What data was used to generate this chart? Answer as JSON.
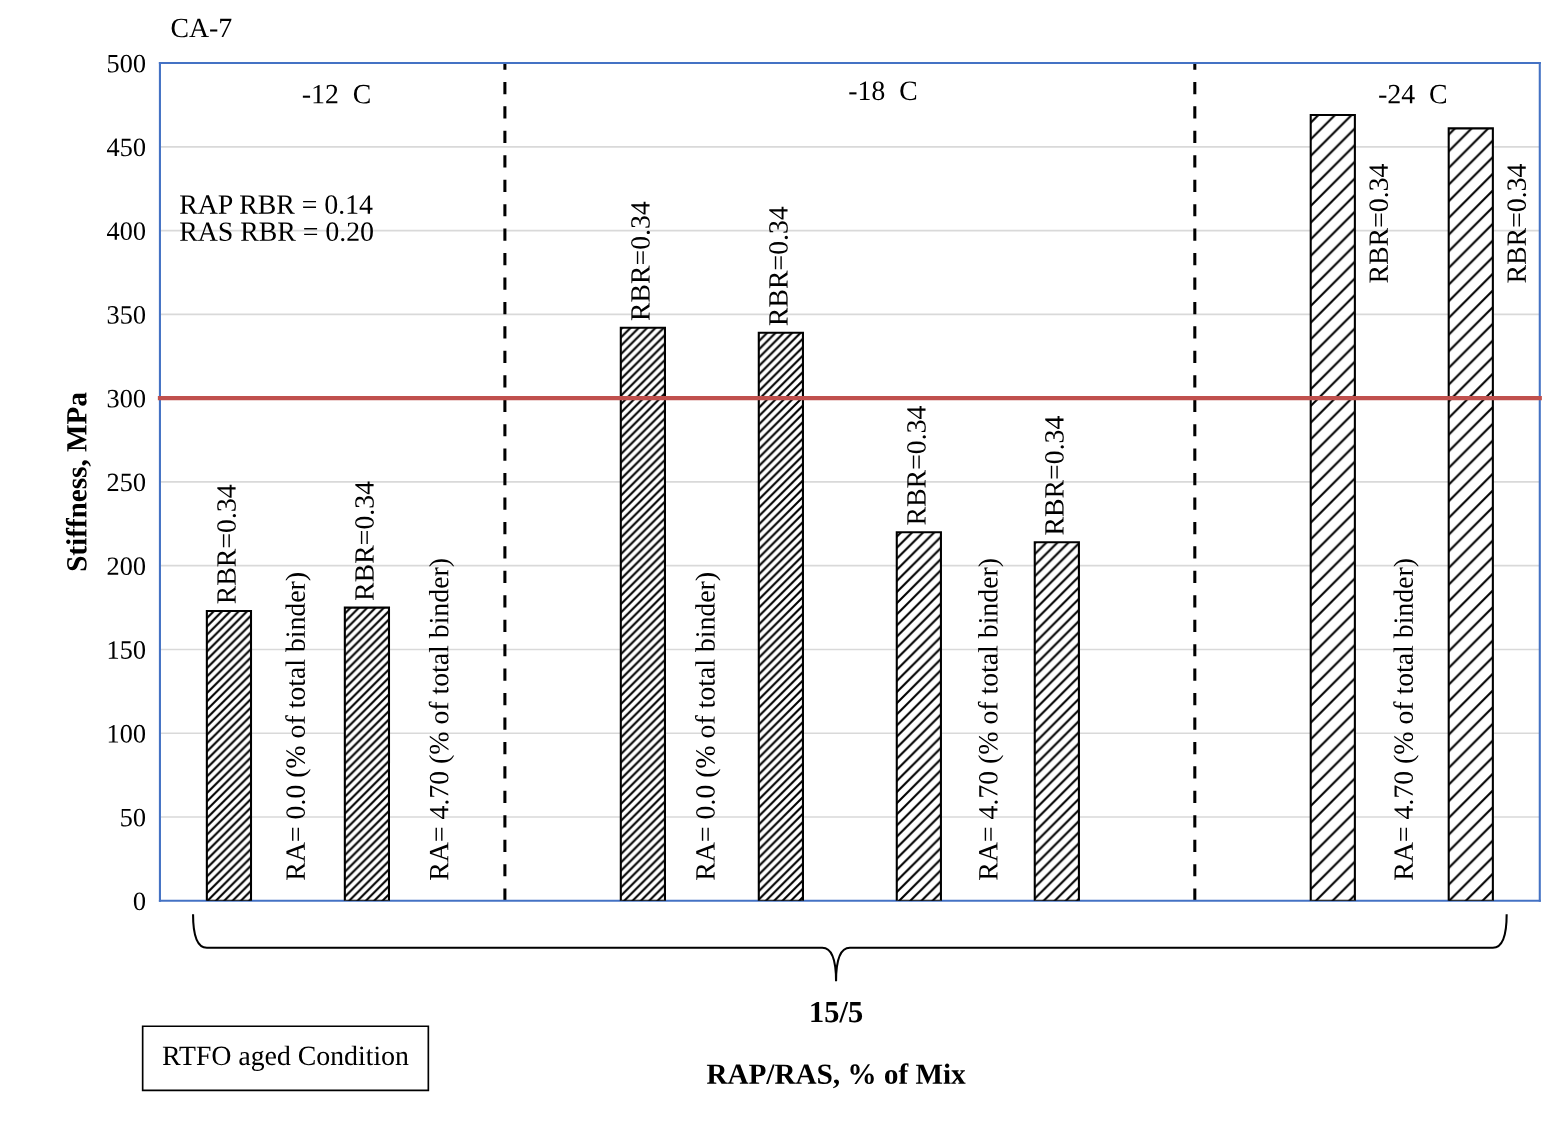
{
  "chart_data": {
    "type": "bar",
    "ylabel": "Stiffness, MPa",
    "categories": [
      null,
      null,
      null,
      null,
      null,
      null,
      null,
      null,
      null,
      null
    ],
    "values": [
      173,
      175,
      null,
      342,
      339,
      220,
      214,
      null,
      469,
      461
    ],
    "color": "#000000",
    "ylim": [
      0,
      500
    ],
    "yticks": [
      0,
      50,
      100,
      150,
      200,
      250,
      300,
      350,
      400,
      450,
      500
    ],
    "grid": "y",
    "tick_labels": "y",
    "ref_lines": [
      {
        "axis": "y",
        "value": 300,
        "color": "#c0504d",
        "line_style": "solid"
      }
    ],
    "annotations": [
      "CA-7",
      "-12  C",
      "-18  C",
      "-24  C",
      "RAP RBR = 0.14\nRAS RBR = 0.20",
      "RBR=0.34",
      "RBR=0.34",
      "RBR=0.34",
      "RBR=0.34",
      "RBR=0.34",
      "RBR=0.34",
      "RBR=0.34",
      "RBR=0.34",
      "RA= 0.0 (% of total binder)",
      "RA= 4.70 (% of total binder)",
      "RA= 0.0 (% of total binder)",
      "RA= 4.70 (% of total binder)",
      "RA= 4.70 (% of total binder)",
      "15/5",
      "RTFO aged Condition",
      "RAP/RAS, % of Mix"
    ]
  }
}
